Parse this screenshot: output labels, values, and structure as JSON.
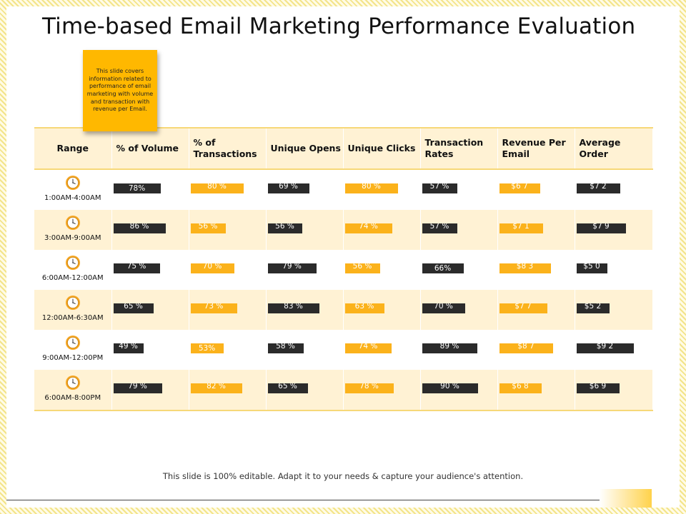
{
  "title": "Time-based Email Marketing Performance Evaluation",
  "note": "This slide covers information related to performance of email marketing with volume and transaction with revenue per Email.",
  "headers": [
    "Range",
    "% of Volume",
    "% of Transactions",
    "Unique Opens",
    "Unique Clicks",
    "Transaction Rates",
    "Revenue Per Email",
    "Average Order"
  ],
  "colors": {
    "dark_bar": "#2b2b2b",
    "gold_bar": "#fbb21b",
    "band": "#fff2d4"
  },
  "icons": {
    "range": "clock-icon"
  },
  "rows": [
    {
      "range": "1:00AM-4:00AM",
      "cells": [
        {
          "label": "78%",
          "pct": 0.62
        },
        {
          "label": "80 %",
          "pct": 0.7
        },
        {
          "label": "69 %",
          "pct": 0.55
        },
        {
          "label": "80 %",
          "pct": 0.7
        },
        {
          "label": "57 %",
          "pct": 0.46
        },
        {
          "label": "$6 7",
          "pct": 0.54
        },
        {
          "label": "$7 2",
          "pct": 0.58
        }
      ]
    },
    {
      "range": "3:00AM-9:00AM",
      "cells": [
        {
          "label": "86 %",
          "pct": 0.69
        },
        {
          "label": "56 %",
          "pct": 0.46
        },
        {
          "label": "56 %",
          "pct": 0.45
        },
        {
          "label": "74 %",
          "pct": 0.62
        },
        {
          "label": "57 %",
          "pct": 0.46
        },
        {
          "label": "$7 1",
          "pct": 0.58
        },
        {
          "label": "$7 9",
          "pct": 0.65
        }
      ]
    },
    {
      "range": "6:00AM-12:00AM",
      "cells": [
        {
          "label": "75 %",
          "pct": 0.61
        },
        {
          "label": "70 %",
          "pct": 0.58
        },
        {
          "label": "79 %",
          "pct": 0.64
        },
        {
          "label": "56 %",
          "pct": 0.46
        },
        {
          "label": "66%",
          "pct": 0.55
        },
        {
          "label": "$8 3",
          "pct": 0.68
        },
        {
          "label": "$5 0",
          "pct": 0.41
        }
      ]
    },
    {
      "range": "12:00AM-6:30AM",
      "cells": [
        {
          "label": "65 %",
          "pct": 0.53
        },
        {
          "label": "73 %",
          "pct": 0.61
        },
        {
          "label": "83 %",
          "pct": 0.68
        },
        {
          "label": "63 %",
          "pct": 0.52
        },
        {
          "label": "70 %",
          "pct": 0.57
        },
        {
          "label": "$7 7",
          "pct": 0.63
        },
        {
          "label": "$5 2",
          "pct": 0.43
        }
      ]
    },
    {
      "range": "9:00AM-12:00PM",
      "cells": [
        {
          "label": "49 %",
          "pct": 0.4
        },
        {
          "label": "53%",
          "pct": 0.43
        },
        {
          "label": "58 %",
          "pct": 0.47
        },
        {
          "label": "74 %",
          "pct": 0.61
        },
        {
          "label": "89 %",
          "pct": 0.73
        },
        {
          "label": "$8 7",
          "pct": 0.71
        },
        {
          "label": "$9 2",
          "pct": 0.75
        }
      ]
    },
    {
      "range": "6:00AM-8:00PM",
      "cells": [
        {
          "label": "79 %",
          "pct": 0.64
        },
        {
          "label": "82 %",
          "pct": 0.68
        },
        {
          "label": "65 %",
          "pct": 0.53
        },
        {
          "label": "78 %",
          "pct": 0.64
        },
        {
          "label": "90 %",
          "pct": 0.74
        },
        {
          "label": "$6 8",
          "pct": 0.56
        },
        {
          "label": "$6 9",
          "pct": 0.57
        }
      ]
    }
  ],
  "bar_styles": [
    "dark",
    "gold",
    "dark",
    "gold",
    "dark",
    "gold",
    "dark"
  ],
  "footer": "This slide is 100% editable. Adapt it to your needs & capture your audience's attention."
}
